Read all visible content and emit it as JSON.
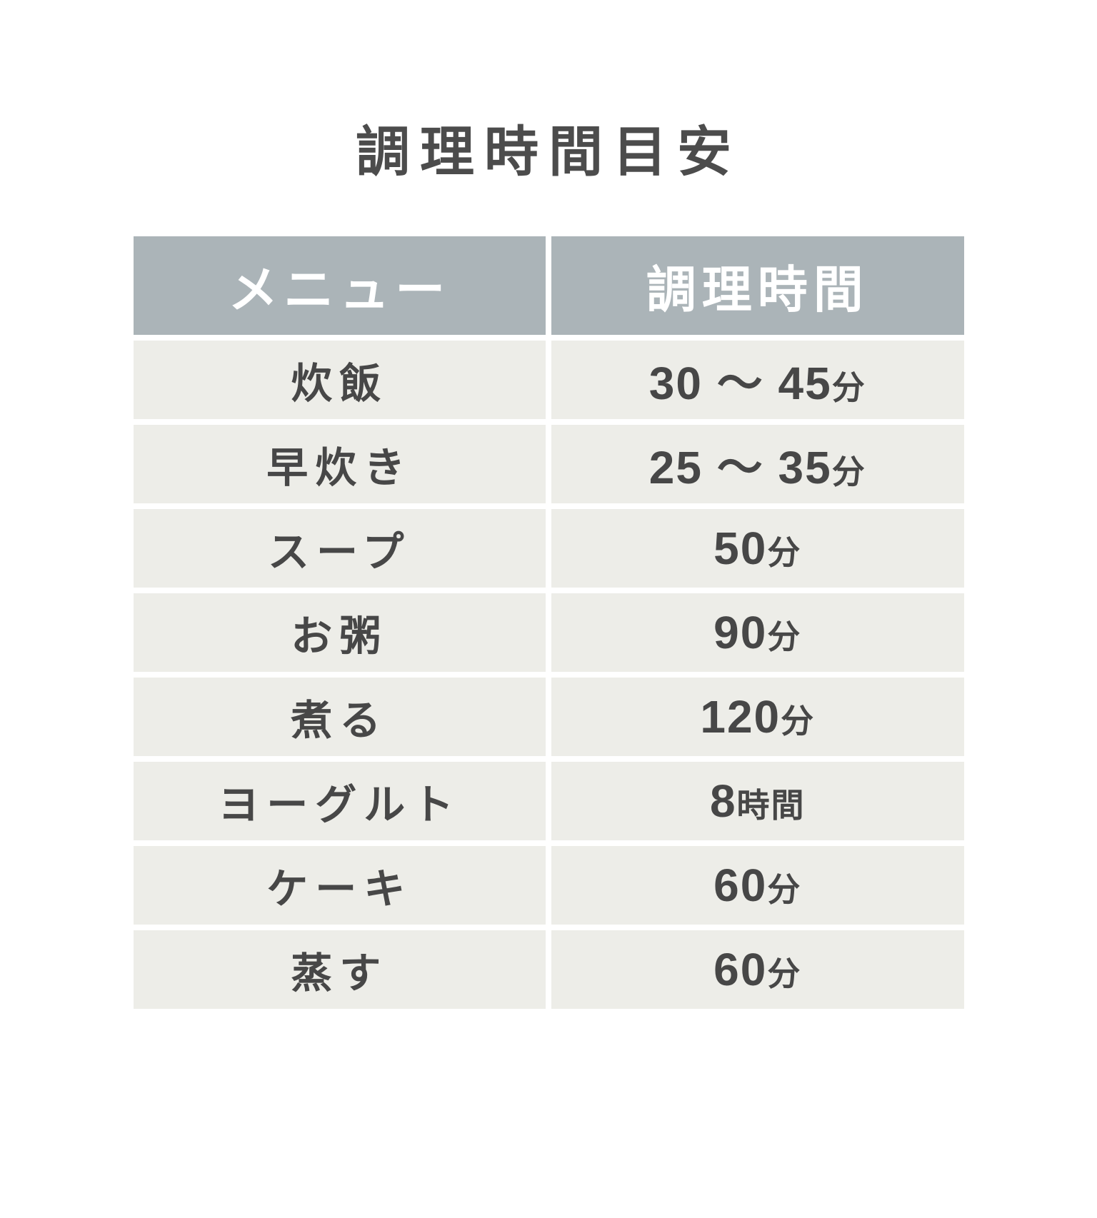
{
  "title": "調理時間目安",
  "colors": {
    "page_bg": "#ffffff",
    "header_bg": "#abb4b8",
    "header_text": "#ffffff",
    "row_bg": "#edede8",
    "text": "#474747"
  },
  "table": {
    "columns": [
      {
        "label": "メニュー"
      },
      {
        "label": "調理時間"
      }
    ],
    "rows": [
      {
        "menu": "炊飯",
        "time_value": "30 〜 45",
        "time_unit": "分"
      },
      {
        "menu": "早炊き",
        "time_value": "25 〜 35",
        "time_unit": "分"
      },
      {
        "menu": "スープ",
        "time_value": "50",
        "time_unit": "分"
      },
      {
        "menu": "お粥",
        "time_value": "90",
        "time_unit": "分"
      },
      {
        "menu": "煮る",
        "time_value": "120",
        "time_unit": "分"
      },
      {
        "menu": "ヨーグルト",
        "time_value": "8",
        "time_unit": "時間"
      },
      {
        "menu": "ケーキ",
        "time_value": "60",
        "time_unit": "分"
      },
      {
        "menu": "蒸す",
        "time_value": "60",
        "time_unit": "分"
      }
    ]
  },
  "chart_data": {
    "type": "table",
    "title": "調理時間目安",
    "columns": [
      "メニュー",
      "調理時間"
    ],
    "rows": [
      [
        "炊飯",
        "30〜45分"
      ],
      [
        "早炊き",
        "25〜35分"
      ],
      [
        "スープ",
        "50分"
      ],
      [
        "お粥",
        "90分"
      ],
      [
        "煮る",
        "120分"
      ],
      [
        "ヨーグルト",
        "8時間"
      ],
      [
        "ケーキ",
        "60分"
      ],
      [
        "蒸す",
        "60分"
      ]
    ]
  }
}
